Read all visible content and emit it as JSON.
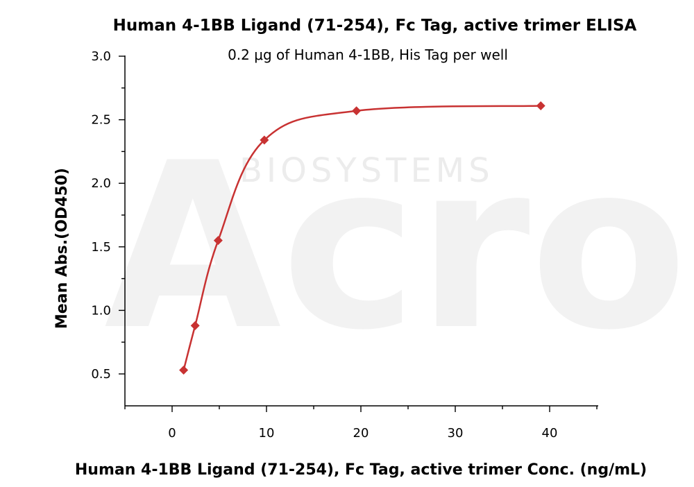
{
  "watermark": {
    "main": "Acro",
    "sub": "BIOSYSTEMS"
  },
  "chart_data": {
    "type": "scatter",
    "title": "Human 4-1BB Ligand (71-254), Fc Tag, active trimer ELISA",
    "subtitle": "0.2 μg of Human 4-1BB, His Tag per well",
    "xlabel": "Human 4-1BB Ligand (71-254), Fc Tag, active trimer Conc. (ng/mL)",
    "ylabel": "Mean Abs.(OD450)",
    "xlim": [
      -5,
      45
    ],
    "ylim": [
      0.3,
      3.0
    ],
    "xticks": [
      0,
      10,
      20,
      30,
      40
    ],
    "yticks": [
      0.5,
      1.0,
      1.5,
      2.0,
      2.5,
      3.0
    ],
    "xtick_labels": [
      "0",
      "10",
      "20",
      "30",
      "40"
    ],
    "ytick_labels": [
      "0.5",
      "1.0",
      "1.5",
      "2.0",
      "2.5",
      "3.0"
    ],
    "grid": false,
    "legend": "none",
    "color": "#c83232",
    "marker": "diamond",
    "series": [
      {
        "x": [
          1.22,
          2.44,
          4.88,
          9.77,
          19.53,
          39.06
        ],
        "y": [
          0.53,
          0.88,
          1.55,
          2.34,
          2.57,
          2.61
        ],
        "fit": "curve"
      }
    ]
  }
}
